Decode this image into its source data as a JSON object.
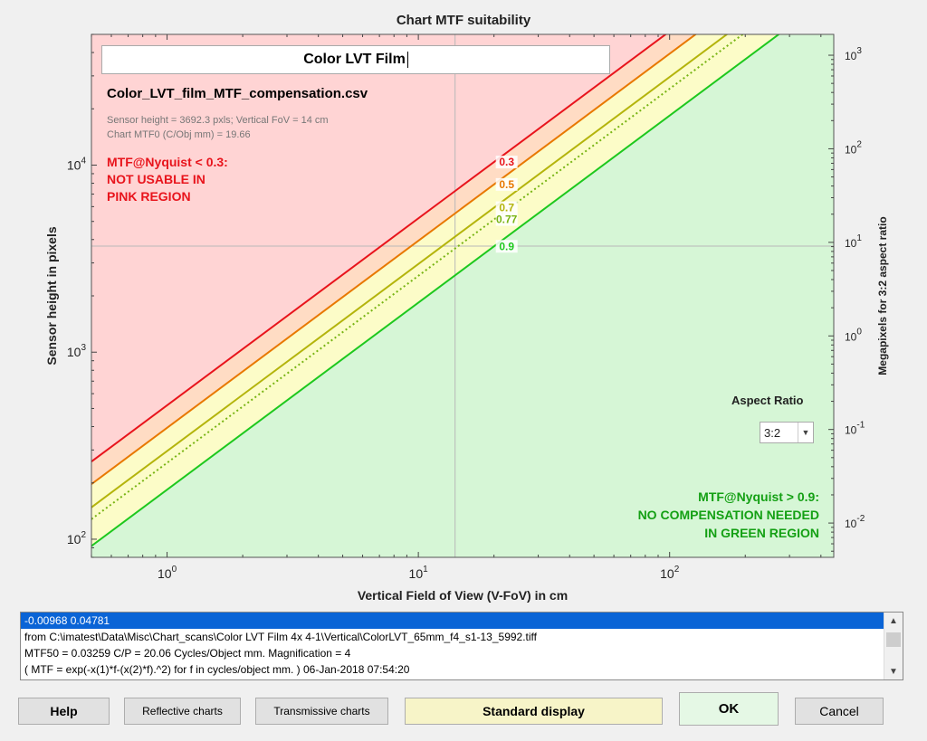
{
  "window_title": "Chart MTF suitability",
  "input_title": "Color LVT Film",
  "colors": {
    "pink": "#ffd4d4",
    "peach": "#ffdcc4",
    "yellow": "#fcfcc8",
    "green": "#d6f6d6",
    "line_03": "#e8141c",
    "line_05": "#e87800",
    "line_07": "#b4b40c",
    "line_077": "#78b414",
    "line_09": "#1ec81e"
  },
  "chart_data": {
    "type": "line",
    "title": "Chart MTF suitability",
    "xlabel": "Vertical Field of View (V-FoV) in cm",
    "ylabel": "Sensor height in pixels",
    "y2label": "Megapixels for 3:2 aspect ratio",
    "x_scale": "log",
    "y_scale": "log",
    "xlim": [
      0.5,
      450
    ],
    "ylim": [
      80,
      50000
    ],
    "y2lim": [
      0.0043,
      1670
    ],
    "grid": false,
    "x_ticks": [
      {
        "base": "10",
        "exp": "0",
        "value": 1
      },
      {
        "base": "10",
        "exp": "1",
        "value": 10
      },
      {
        "base": "10",
        "exp": "2",
        "value": 100
      }
    ],
    "y_ticks": [
      {
        "base": "10",
        "exp": "2",
        "value": 100
      },
      {
        "base": "10",
        "exp": "3",
        "value": 1000
      },
      {
        "base": "10",
        "exp": "4",
        "value": 10000
      }
    ],
    "y2_ticks": [
      {
        "base": "10",
        "exp": "-2",
        "value": 0.01
      },
      {
        "base": "10",
        "exp": "-1",
        "value": 0.1
      },
      {
        "base": "10",
        "exp": "0",
        "value": 1
      },
      {
        "base": "10",
        "exp": "1",
        "value": 10
      },
      {
        "base": "10",
        "exp": "2",
        "value": 100
      },
      {
        "base": "10",
        "exp": "3",
        "value": 1000
      }
    ],
    "crosshair": {
      "x": 14,
      "y": 3692.3
    },
    "series": [
      {
        "name": "0.3",
        "x": [
          0.5,
          270
        ],
        "y": [
          260,
          140000
        ],
        "color": "#e8141c",
        "style": "solid"
      },
      {
        "name": "0.5",
        "x": [
          0.5,
          345
        ],
        "y": [
          197,
          136000
        ],
        "color": "#e87800",
        "style": "solid"
      },
      {
        "name": "0.7",
        "x": [
          0.5,
          500
        ],
        "y": [
          148,
          148000
        ],
        "color": "#b4b40c",
        "style": "solid"
      },
      {
        "name": "0.77",
        "x": [
          0.5,
          500
        ],
        "y": [
          128,
          128000
        ],
        "color": "#78b414",
        "style": "dotted"
      },
      {
        "name": "0.9",
        "x": [
          0.5,
          500
        ],
        "y": [
          92,
          92000
        ],
        "color": "#1ec81e",
        "style": "solid"
      }
    ],
    "line_labels_at_x": 20
  },
  "annotations": {
    "csv_name": "Color_LVT_film_MTF_compensation.csv",
    "note1": "Sensor height = 3692.3 pxls;  Vertical FoV = 14 cm",
    "note2": "Chart MTF0 (C/Obj mm) = 19.66",
    "red_line1": "MTF@Nyquist < 0.3:",
    "red_line2": "NOT USABLE IN",
    "red_line3": "PINK REGION",
    "green_line1": "MTF@Nyquist > 0.9:",
    "green_line2": "NO COMPENSATION NEEDED",
    "green_line3": "IN GREEN REGION"
  },
  "aspect": {
    "label": "Aspect Ratio",
    "value": "3:2"
  },
  "log": {
    "lines": [
      "-0.00968  0.04781",
      "from  C:\\imatest\\Data\\Misc\\Chart_scans\\Color LVT Film 4x 4-1\\Vertical\\ColorLVT_65mm_f4_s1-13_5992.tiff",
      "MTF50 = 0.03259 C/P  = 20.06 Cycles/Object mm.  Magnification = 4",
      "( MTF = exp(-x(1)*f-(x(2)*f).^2) for f in cycles/object mm. )  06-Jan-2018 07:54:20"
    ]
  },
  "buttons": {
    "help": "Help",
    "reflective": "Reflective charts",
    "transmissive": "Transmissive charts",
    "standard": "Standard display",
    "ok": "OK",
    "cancel": "Cancel"
  }
}
